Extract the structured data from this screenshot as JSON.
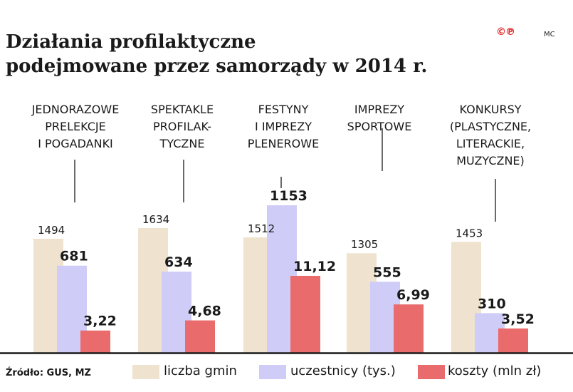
{
  "header": {
    "title_line1": "Działania profilaktyczne",
    "title_line2": "podejmowane przez samorządy w 2014 r.",
    "logo": "©℗",
    "author": "MC"
  },
  "source": "Źródło: GUS, MZ",
  "colors": {
    "gminy": "#efe3cf",
    "uczestnicy": "#cfcdf7",
    "koszty": "#ea6b6b",
    "axis": "#1a1a1a",
    "logo": "#e0282a"
  },
  "chart_data": {
    "type": "bar",
    "title": "Działania profilaktyczne podejmowane przez samorządy w 2014 r.",
    "categories": [
      [
        "JEDNORAZOWE",
        "PRELEKCJE",
        "I POGADANKI"
      ],
      [
        "SPEKTAKLE",
        "PROFILAK-",
        "TYCZNE"
      ],
      [
        "FESTYNY",
        "I IMPREZY",
        "PLENEROWE"
      ],
      [
        "IMPREZY",
        "SPORTOWE"
      ],
      [
        "KONKURSY",
        "(PLASTYCZNE,",
        "LITERACKIE,",
        "MUZYCZNE)"
      ]
    ],
    "series": [
      {
        "name": "liczba gmin",
        "values": [
          1494,
          1634,
          1512,
          1305,
          1453
        ],
        "labels": [
          "1494",
          "1634",
          "1512",
          "1305",
          "1453"
        ]
      },
      {
        "name": "uczestnicy (tys.)",
        "values": [
          681,
          634,
          1153,
          555,
          310
        ],
        "labels": [
          "681",
          "634",
          "1153",
          "555",
          "310"
        ]
      },
      {
        "name": "koszty (mln zł)",
        "values": [
          3.22,
          4.68,
          11.12,
          6.99,
          3.52
        ],
        "labels": [
          "3,22",
          "4,68",
          "11,12",
          "6,99",
          "3,52"
        ]
      }
    ],
    "legend": [
      "liczba gmin",
      "uczestnicy (tys.)",
      "koszty (mln zł)"
    ],
    "legend_position": "bottom"
  }
}
